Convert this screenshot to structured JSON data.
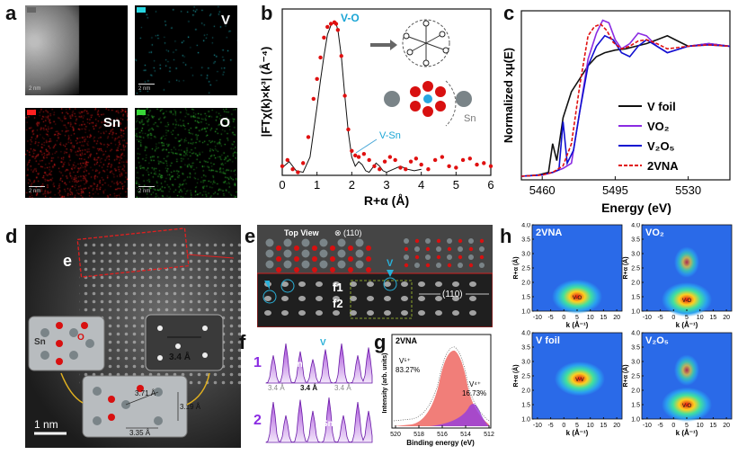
{
  "panel_a": {
    "label": "a",
    "maps": [
      {
        "tag": "",
        "scale": "2 nm",
        "color": "#9a9a9a"
      },
      {
        "tag": "V",
        "scale": "2 nm",
        "color": "#27d6e0"
      },
      {
        "tag": "Sn",
        "scale": "2 nm",
        "color": "#ff2020"
      },
      {
        "tag": "O",
        "scale": "2 nm",
        "color": "#38d838"
      }
    ]
  },
  "panel_b": {
    "label": "b",
    "bond_vo": "V-O",
    "bond_vsn": "V-Sn",
    "sn_label": "Sn",
    "chart_data": {
      "type": "line",
      "xlabel": "R+α (Å)",
      "ylabel": "|FTχ(k)×k³| (Å⁻⁴)",
      "xlim": [
        0,
        6
      ],
      "xticks": [
        0,
        1,
        2,
        3,
        4,
        5,
        6
      ],
      "series": [
        {
          "name": "fit",
          "style": "line",
          "color": "#111111",
          "x": [
            0.0,
            0.2,
            0.4,
            0.6,
            0.8,
            1.0,
            1.1,
            1.2,
            1.3,
            1.4,
            1.5,
            1.55,
            1.6,
            1.7,
            1.8,
            1.9,
            2.0,
            2.1,
            2.2,
            2.3,
            2.4,
            2.5,
            2.6,
            2.7,
            2.8,
            2.9,
            3.0,
            3.2,
            3.4,
            3.6,
            3.8,
            4.0
          ],
          "y": [
            0.05,
            0.09,
            0.03,
            0.02,
            0.12,
            0.45,
            0.62,
            0.78,
            0.92,
            0.98,
            1.0,
            0.99,
            0.95,
            0.78,
            0.52,
            0.28,
            0.12,
            0.06,
            0.09,
            0.07,
            0.03,
            0.02,
            0.05,
            0.08,
            0.06,
            0.03,
            0.02,
            0.04,
            0.06,
            0.04,
            0.03,
            0.04
          ]
        },
        {
          "name": "data",
          "style": "dots",
          "color": "#e01010",
          "x": [
            0.0,
            0.15,
            0.3,
            0.45,
            0.6,
            0.75,
            0.9,
            1.0,
            1.1,
            1.2,
            1.3,
            1.4,
            1.5,
            1.55,
            1.6,
            1.7,
            1.8,
            1.9,
            2.0,
            2.1,
            2.2,
            2.35,
            2.5,
            2.65,
            2.8,
            2.95,
            3.1,
            3.25,
            3.4,
            3.55,
            3.7,
            3.85,
            4.0,
            4.2,
            4.4,
            4.6,
            4.8,
            5.0,
            5.2,
            5.4,
            5.6,
            5.8,
            6.0
          ],
          "y": [
            0.06,
            0.1,
            0.04,
            0.02,
            0.08,
            0.25,
            0.5,
            0.63,
            0.77,
            0.9,
            0.97,
            0.99,
            1.0,
            0.99,
            0.95,
            0.78,
            0.52,
            0.3,
            0.16,
            0.13,
            0.12,
            0.14,
            0.1,
            0.06,
            0.04,
            0.09,
            0.12,
            0.1,
            0.05,
            0.04,
            0.09,
            0.11,
            0.07,
            0.04,
            0.1,
            0.12,
            0.06,
            0.05,
            0.1,
            0.11,
            0.07,
            0.08,
            0.06
          ]
        }
      ]
    }
  },
  "panel_c": {
    "label": "c",
    "chart_data": {
      "type": "line",
      "xlabel": "Energy (eV)",
      "ylabel": "Normalized xμ(E)",
      "xticks": [
        5460,
        5495,
        5530
      ],
      "xlim": [
        5450,
        5550
      ],
      "series": [
        {
          "name": "V foil",
          "color": "#111111",
          "dash": false,
          "x": [
            5450,
            5458,
            5463,
            5465,
            5467,
            5470,
            5474,
            5478,
            5482,
            5486,
            5490,
            5495,
            5500,
            5505,
            5510,
            5515,
            5520,
            5525,
            5530,
            5540,
            5550
          ],
          "y": [
            0.0,
            0.01,
            0.03,
            0.25,
            0.12,
            0.45,
            0.65,
            0.75,
            0.85,
            0.92,
            0.95,
            0.97,
            0.98,
            1.0,
            1.02,
            1.05,
            1.08,
            1.04,
            1.0,
            1.02,
            1.0
          ]
        },
        {
          "name": "VO₂",
          "color": "#8a2be2",
          "dash": false,
          "x": [
            5450,
            5460,
            5465,
            5470,
            5474,
            5478,
            5482,
            5486,
            5489,
            5492,
            5495,
            5498,
            5502,
            5506,
            5510,
            5515,
            5520,
            5530,
            5540,
            5550
          ],
          "y": [
            0.0,
            0.01,
            0.03,
            0.06,
            0.1,
            0.5,
            0.9,
            1.1,
            1.2,
            1.18,
            1.05,
            0.98,
            1.02,
            1.1,
            1.08,
            1.0,
            0.95,
            1.0,
            1.02,
            1.0
          ]
        },
        {
          "name": "V₂O₅",
          "color": "#1010d0",
          "dash": false,
          "x": [
            5450,
            5460,
            5465,
            5468,
            5470,
            5472,
            5475,
            5478,
            5482,
            5486,
            5490,
            5494,
            5498,
            5502,
            5506,
            5510,
            5515,
            5520,
            5530,
            5540,
            5550
          ],
          "y": [
            0.0,
            0.01,
            0.03,
            0.05,
            0.42,
            0.1,
            0.2,
            0.5,
            0.85,
            1.0,
            1.08,
            1.05,
            0.95,
            0.92,
            1.0,
            1.05,
            1.0,
            0.95,
            1.0,
            1.01,
            1.0
          ]
        },
        {
          "name": "2VNA",
          "color": "#e01010",
          "dash": true,
          "x": [
            5450,
            5460,
            5465,
            5470,
            5474,
            5478,
            5482,
            5485,
            5488,
            5491,
            5494,
            5498,
            5502,
            5506,
            5510,
            5515,
            5520,
            5530,
            5540,
            5550
          ],
          "y": [
            0.0,
            0.01,
            0.03,
            0.08,
            0.25,
            0.7,
            1.08,
            1.15,
            1.17,
            1.12,
            1.03,
            0.98,
            1.0,
            1.04,
            1.05,
            1.02,
            0.98,
            1.0,
            1.01,
            1.0
          ]
        }
      ]
    }
  },
  "panel_d": {
    "label": "d",
    "inset_letter": "e",
    "sn_label": "Sn",
    "o_label": "O",
    "spacing_right": "3.4 Å",
    "dist_1": "3.71 Å",
    "dist_2": "3.19 Å",
    "dist_3": "3.35 Å",
    "scale": "1 nm"
  },
  "panel_e": {
    "label": "e",
    "top_view": "Top View",
    "plane": "⊗ (110)",
    "v_marker": "V",
    "f1": "f1",
    "f2": "f2",
    "plane_lattice": "(110)"
  },
  "panel_f": {
    "label": "f",
    "row1": "1",
    "row2": "2",
    "v_marker": "V",
    "sn": "Sn",
    "sp_a": "3.4 Å",
    "sp_b": "3.4 Å",
    "sp_c": "3.4 Å"
  },
  "panel_g": {
    "label": "g",
    "sample": "2VNA",
    "v5": "V⁵⁺",
    "v5pct": "83.27%",
    "v4": "V⁴⁺",
    "v4pct": "16.73%",
    "xlabel": "Binding energy (eV)",
    "ylabel": "Intensity (arb. units)",
    "xticks": [
      "520",
      "518",
      "516",
      "514",
      "512"
    ]
  },
  "panel_h": {
    "label": "h",
    "maps": [
      {
        "name": "2VNA",
        "spot": "V-O",
        "cx": 5,
        "cy": 1.5
      },
      {
        "name": "VO₂",
        "spot": "V-O",
        "cx": 5,
        "cy": 1.4
      },
      {
        "name": "V foil",
        "spot": "V-V",
        "cx": 6,
        "cy": 2.4
      },
      {
        "name": "V₂O₅",
        "spot": "V-O",
        "cx": 5,
        "cy": 1.5
      }
    ],
    "xlabel": "k (Å⁻¹)",
    "ylabel": "R+α (Å)",
    "xticks": [
      "-10",
      "-5",
      "0",
      "5",
      "10",
      "15",
      "20"
    ],
    "yticks": [
      "1.0",
      "1.5",
      "2.0",
      "2.5",
      "3.0",
      "3.5",
      "4.0"
    ]
  }
}
